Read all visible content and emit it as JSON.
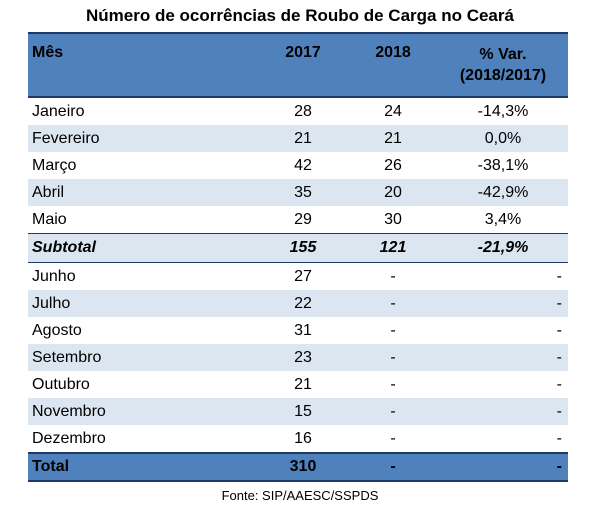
{
  "title": "Número de ocorrências de Roubo de Carga no Ceará",
  "header": {
    "mes": "Mês",
    "y2017": "2017",
    "y2018": "2018",
    "var_line1": "% Var.",
    "var_line2": "(2018/2017)"
  },
  "rows_first": [
    {
      "mes": "Janeiro",
      "y2017": "28",
      "y2018": "24",
      "var": "-14,3%"
    },
    {
      "mes": "Fevereiro",
      "y2017": "21",
      "y2018": "21",
      "var": "0,0%"
    },
    {
      "mes": "Março",
      "y2017": "42",
      "y2018": "26",
      "var": "-38,1%"
    },
    {
      "mes": "Abril",
      "y2017": "35",
      "y2018": "20",
      "var": "-42,9%"
    },
    {
      "mes": "Maio",
      "y2017": "29",
      "y2018": "30",
      "var": "3,4%"
    }
  ],
  "subtotal": {
    "mes": "Subtotal",
    "y2017": "155",
    "y2018": "121",
    "var": "-21,9%"
  },
  "rows_second": [
    {
      "mes": "Junho",
      "y2017": "27",
      "y2018": "-",
      "var": "-"
    },
    {
      "mes": "Julho",
      "y2017": "22",
      "y2018": "-",
      "var": "-"
    },
    {
      "mes": "Agosto",
      "y2017": "31",
      "y2018": "-",
      "var": "-"
    },
    {
      "mes": "Setembro",
      "y2017": "23",
      "y2018": "-",
      "var": "-"
    },
    {
      "mes": "Outubro",
      "y2017": "21",
      "y2018": "-",
      "var": "-"
    },
    {
      "mes": "Novembro",
      "y2017": "15",
      "y2018": "-",
      "var": "-"
    },
    {
      "mes": "Dezembro",
      "y2017": "16",
      "y2018": "-",
      "var": "-"
    }
  ],
  "total": {
    "mes": "Total",
    "y2017": "310",
    "y2018": "-",
    "var": "-"
  },
  "footer": "Fonte: SIP/AAESC/SSPDS",
  "colors": {
    "header_bg": "#4F81BD",
    "band_bg": "#DCE6F1",
    "border": "#1F3864"
  }
}
